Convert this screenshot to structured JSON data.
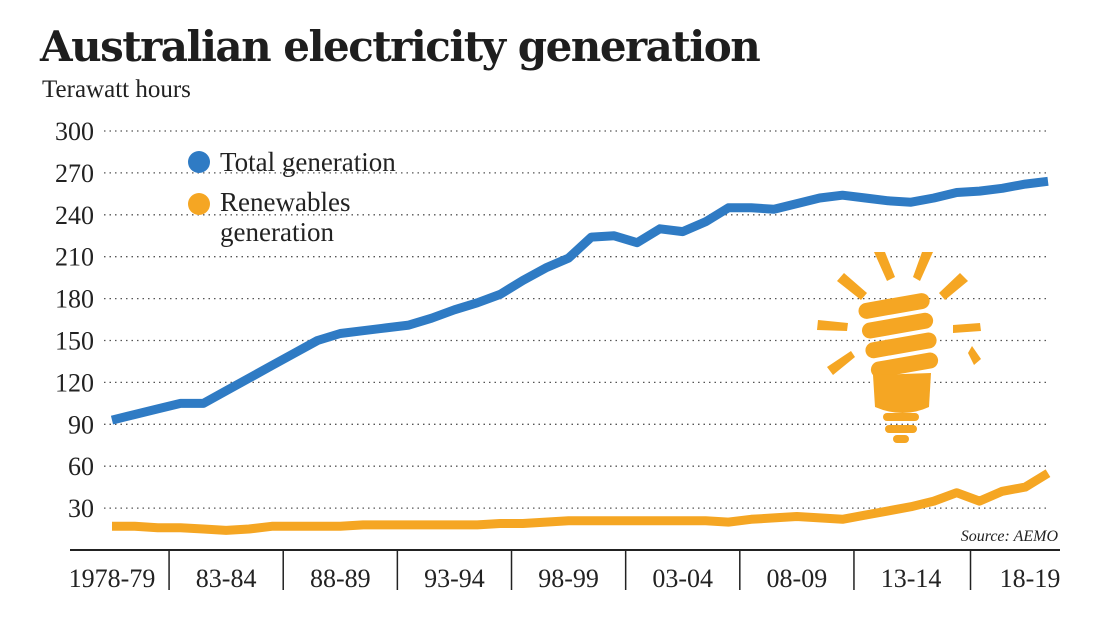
{
  "chart_data": {
    "type": "line",
    "title": "Australian electricity generation",
    "ylabel": "Terawatt hours",
    "ylim": [
      0,
      300
    ],
    "yticks": [
      30,
      60,
      90,
      120,
      150,
      180,
      210,
      240,
      270,
      300
    ],
    "x": [
      "1978-79",
      "1979-80",
      "1980-81",
      "1981-82",
      "1982-83",
      "1983-84",
      "1984-85",
      "1985-86",
      "1986-87",
      "1987-88",
      "1988-89",
      "1989-90",
      "1990-91",
      "1991-92",
      "1992-93",
      "1993-94",
      "1994-95",
      "1995-96",
      "1996-97",
      "1997-98",
      "1998-99",
      "1999-00",
      "2000-01",
      "2001-02",
      "2002-03",
      "2003-04",
      "2004-05",
      "2005-06",
      "2006-07",
      "2007-08",
      "2008-09",
      "2009-10",
      "2010-11",
      "2011-12",
      "2012-13",
      "2013-14",
      "2014-15",
      "2015-16",
      "2016-17",
      "2017-18",
      "2018-19",
      "2019-20"
    ],
    "xtick_labels": [
      "1978-79",
      "83-84",
      "88-89",
      "93-94",
      "98-99",
      "03-04",
      "08-09",
      "13-14",
      "18-19"
    ],
    "series": [
      {
        "name": "Total generation",
        "color": "#2f7bc4",
        "values": [
          93,
          97,
          101,
          105,
          105,
          114,
          123,
          132,
          141,
          150,
          155,
          157,
          159,
          161,
          166,
          172,
          177,
          183,
          193,
          202,
          209,
          224,
          225,
          220,
          230,
          228,
          235,
          245,
          245,
          244,
          248,
          252,
          254,
          252,
          250,
          249,
          252,
          256,
          257,
          259,
          262,
          264
        ]
      },
      {
        "name": "Renewables generation",
        "color": "#f5a623",
        "values": [
          17,
          17,
          16,
          16,
          15,
          14,
          15,
          17,
          17,
          17,
          17,
          18,
          18,
          18,
          18,
          18,
          18,
          19,
          19,
          20,
          21,
          21,
          21,
          21,
          21,
          21,
          21,
          20,
          22,
          23,
          24,
          23,
          22,
          25,
          28,
          31,
          35,
          41,
          35,
          42,
          45,
          55
        ]
      }
    ],
    "grid": "horizontal dotted",
    "legend_position": "top-left",
    "source": "Source: AEMO",
    "icon": "lightbulb-icon"
  }
}
